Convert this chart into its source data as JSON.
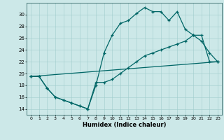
{
  "title": "",
  "xlabel": "Humidex (Indice chaleur)",
  "ylabel": "",
  "bg_color": "#cce8e8",
  "line_color": "#006666",
  "xlim": [
    -0.5,
    23.5
  ],
  "ylim": [
    13.0,
    32.0
  ],
  "yticks": [
    14,
    16,
    18,
    20,
    22,
    24,
    26,
    28,
    30
  ],
  "xticks": [
    0,
    1,
    2,
    3,
    4,
    5,
    6,
    7,
    8,
    9,
    10,
    11,
    12,
    13,
    14,
    15,
    16,
    17,
    18,
    19,
    20,
    21,
    22,
    23
  ],
  "line1_x": [
    0,
    1,
    2,
    3,
    4,
    5,
    6,
    7,
    8,
    9,
    10,
    11,
    12,
    13,
    14,
    15,
    16,
    17,
    18,
    19,
    20,
    21,
    22,
    23
  ],
  "line1_y": [
    19.5,
    19.5,
    17.5,
    16.0,
    15.5,
    15.0,
    14.5,
    14.0,
    18.0,
    23.5,
    26.5,
    28.5,
    29.0,
    30.2,
    31.2,
    30.5,
    30.5,
    29.0,
    30.5,
    27.5,
    26.5,
    25.5,
    23.5,
    22.0
  ],
  "line2_x": [
    0,
    1,
    2,
    3,
    4,
    5,
    6,
    7,
    8,
    9,
    10,
    11,
    12,
    13,
    14,
    15,
    16,
    17,
    18,
    19,
    20,
    21,
    22,
    23
  ],
  "line2_y": [
    19.5,
    19.5,
    17.5,
    16.0,
    15.5,
    15.0,
    14.5,
    14.0,
    18.5,
    18.5,
    19.0,
    20.0,
    21.0,
    22.0,
    23.0,
    23.5,
    24.0,
    24.5,
    25.0,
    25.5,
    26.5,
    26.5,
    22.0,
    22.0
  ],
  "line3_x": [
    0,
    23
  ],
  "line3_y": [
    19.5,
    22.0
  ],
  "marker": "+",
  "markersize": 3,
  "linewidth": 0.9
}
